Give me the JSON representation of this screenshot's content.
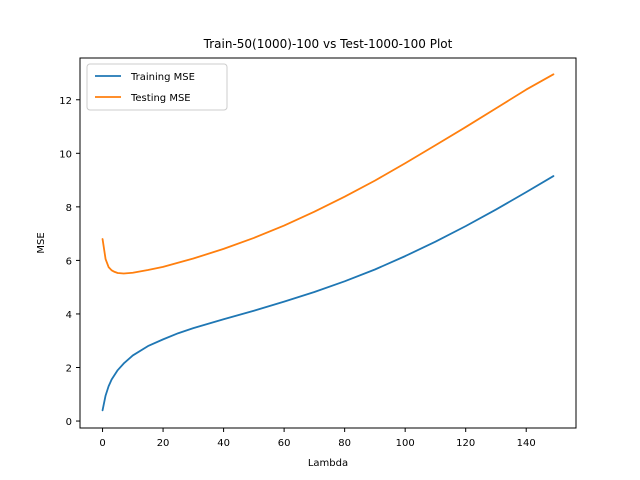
{
  "chart_data": {
    "type": "line",
    "title": "Train-50(1000)-100 vs Test-1000-100 Plot",
    "xlabel": "Lambda",
    "ylabel": "MSE",
    "xlim": [
      -7.45,
      156.45
    ],
    "ylim": [
      -0.26,
      13.56
    ],
    "xticks": [
      0,
      20,
      40,
      60,
      80,
      100,
      120,
      140
    ],
    "yticks": [
      0,
      2,
      4,
      6,
      8,
      10,
      12
    ],
    "grid": false,
    "legend_position": "upper-left",
    "series": [
      {
        "name": "Training MSE",
        "color": "#1f77b4",
        "points": [
          [
            0,
            0.4
          ],
          [
            1,
            0.95
          ],
          [
            2,
            1.3
          ],
          [
            3,
            1.55
          ],
          [
            5,
            1.9
          ],
          [
            7,
            2.15
          ],
          [
            10,
            2.45
          ],
          [
            15,
            2.8
          ],
          [
            20,
            3.05
          ],
          [
            25,
            3.28
          ],
          [
            30,
            3.47
          ],
          [
            40,
            3.8
          ],
          [
            50,
            4.12
          ],
          [
            60,
            4.46
          ],
          [
            70,
            4.82
          ],
          [
            80,
            5.22
          ],
          [
            90,
            5.66
          ],
          [
            100,
            6.16
          ],
          [
            110,
            6.7
          ],
          [
            120,
            7.28
          ],
          [
            130,
            7.9
          ],
          [
            140,
            8.55
          ],
          [
            149,
            9.15
          ]
        ]
      },
      {
        "name": "Testing MSE",
        "color": "#ff7f0e",
        "points": [
          [
            0,
            6.8
          ],
          [
            1,
            6.05
          ],
          [
            2,
            5.75
          ],
          [
            3,
            5.63
          ],
          [
            4,
            5.57
          ],
          [
            5,
            5.53
          ],
          [
            6,
            5.52
          ],
          [
            7,
            5.51
          ],
          [
            8,
            5.52
          ],
          [
            10,
            5.54
          ],
          [
            15,
            5.64
          ],
          [
            20,
            5.76
          ],
          [
            30,
            6.07
          ],
          [
            40,
            6.43
          ],
          [
            50,
            6.84
          ],
          [
            60,
            7.3
          ],
          [
            70,
            7.82
          ],
          [
            80,
            8.38
          ],
          [
            90,
            8.98
          ],
          [
            100,
            9.63
          ],
          [
            110,
            10.3
          ],
          [
            120,
            10.98
          ],
          [
            130,
            11.68
          ],
          [
            140,
            12.38
          ],
          [
            149,
            12.95
          ]
        ]
      }
    ]
  }
}
